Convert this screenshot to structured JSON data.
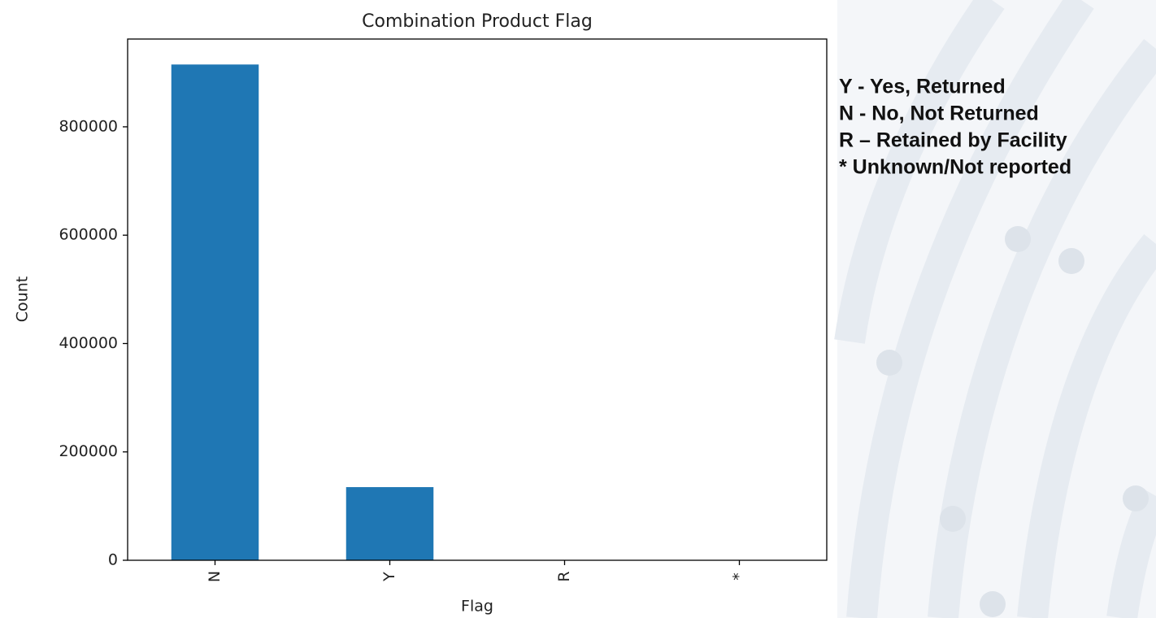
{
  "chart_data": {
    "type": "bar",
    "title": "Combination Product Flag",
    "xlabel": "Flag",
    "ylabel": "Count",
    "categories": [
      "N",
      "Y",
      "R",
      "*"
    ],
    "values": [
      915000,
      135000,
      0,
      0
    ],
    "color": "#1f77b4",
    "ylim": [
      0,
      962000
    ],
    "yticks": [
      0,
      200000,
      400000,
      600000,
      800000
    ],
    "annotations": [
      "Y - Yes, Returned",
      "N - No, Not Returned",
      "R – Retained by Facility",
      "*  Unknown/Not reported"
    ]
  }
}
